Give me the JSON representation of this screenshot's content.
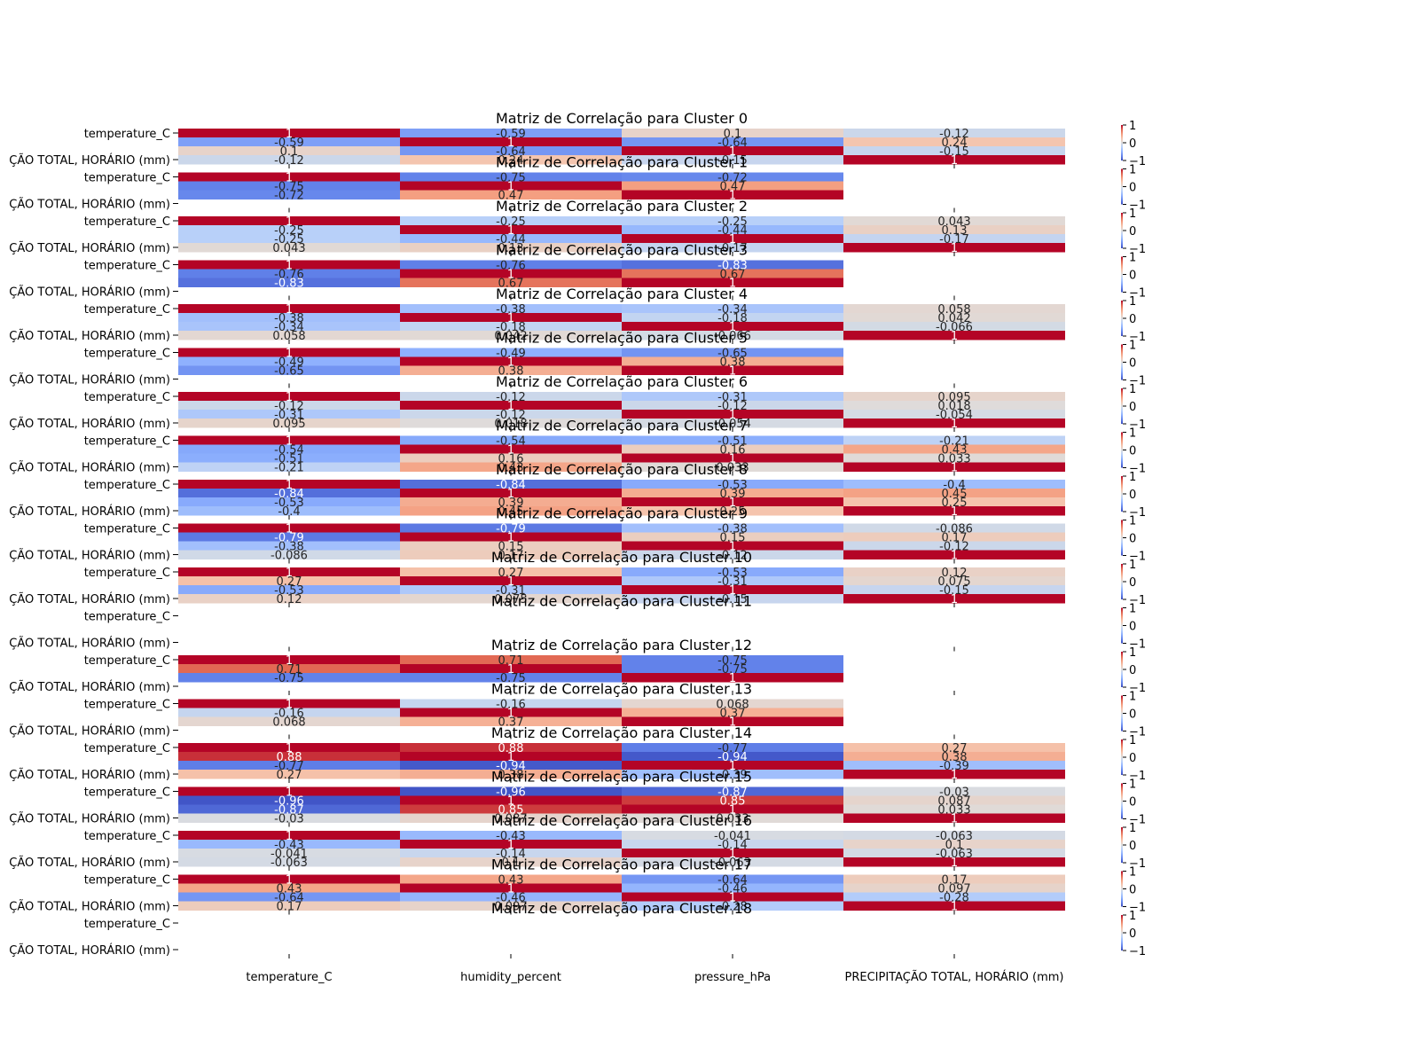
{
  "chart_data": {
    "type": "heatmap",
    "variables": [
      "temperature_C",
      "humidity_percent",
      "pressure_hPa",
      "PRECIPITAÇÃO TOTAL, HORÁRIO (mm)"
    ],
    "y_tick_labels_visible": [
      "temperature_C",
      "ÇÃO TOTAL, HORÁRIO (mm)"
    ],
    "colorbar": {
      "colormap": "coolwarm",
      "ticks": [
        "1",
        "0",
        "−1"
      ]
    },
    "clusters": [
      {
        "title": "Matriz de Correlação para Cluster 0",
        "matrix": [
          [
            1,
            -0.59,
            0.1,
            -0.12
          ],
          [
            -0.59,
            1,
            -0.64,
            0.24
          ],
          [
            0.1,
            -0.64,
            1,
            -0.15
          ],
          [
            -0.12,
            0.24,
            -0.15,
            1
          ]
        ]
      },
      {
        "title": "Matriz de Correlação para Cluster 1",
        "matrix": [
          [
            1,
            -0.75,
            -0.72,
            null
          ],
          [
            -0.75,
            1,
            0.47,
            null
          ],
          [
            -0.72,
            0.47,
            1,
            null
          ],
          [
            null,
            null,
            null,
            null
          ]
        ]
      },
      {
        "title": "Matriz de Correlação para Cluster 2",
        "matrix": [
          [
            1,
            -0.25,
            -0.25,
            0.043
          ],
          [
            -0.25,
            1,
            -0.44,
            0.13
          ],
          [
            -0.25,
            -0.44,
            1,
            -0.17
          ],
          [
            0.043,
            0.13,
            -0.17,
            1
          ]
        ]
      },
      {
        "title": "Matriz de Correlação para Cluster 3",
        "matrix": [
          [
            1,
            -0.76,
            -0.83,
            null
          ],
          [
            -0.76,
            1,
            0.67,
            null
          ],
          [
            -0.83,
            0.67,
            1,
            null
          ],
          [
            null,
            null,
            null,
            null
          ]
        ]
      },
      {
        "title": "Matriz de Correlação para Cluster 4",
        "matrix": [
          [
            1,
            -0.38,
            -0.34,
            0.058
          ],
          [
            -0.38,
            1,
            -0.18,
            0.042
          ],
          [
            -0.34,
            -0.18,
            1,
            -0.066
          ],
          [
            0.058,
            0.042,
            -0.066,
            1
          ]
        ]
      },
      {
        "title": "Matriz de Correlação para Cluster 5",
        "matrix": [
          [
            1,
            -0.49,
            -0.65,
            null
          ],
          [
            -0.49,
            1,
            0.38,
            null
          ],
          [
            -0.65,
            0.38,
            1,
            null
          ],
          [
            null,
            null,
            null,
            null
          ]
        ]
      },
      {
        "title": "Matriz de Correlação para Cluster 6",
        "matrix": [
          [
            1,
            -0.12,
            -0.31,
            0.095
          ],
          [
            -0.12,
            1,
            -0.12,
            0.018
          ],
          [
            -0.31,
            -0.12,
            1,
            -0.054
          ],
          [
            0.095,
            0.018,
            -0.054,
            1
          ]
        ]
      },
      {
        "title": "Matriz de Correlação para Cluster 7",
        "matrix": [
          [
            1,
            -0.54,
            -0.51,
            -0.21
          ],
          [
            -0.54,
            1,
            0.16,
            0.43
          ],
          [
            -0.51,
            0.16,
            1,
            0.033
          ],
          [
            -0.21,
            0.43,
            0.033,
            1
          ]
        ]
      },
      {
        "title": "Matriz de Correlação para Cluster 8",
        "matrix": [
          [
            1,
            -0.84,
            -0.53,
            -0.4
          ],
          [
            -0.84,
            1,
            0.39,
            0.45
          ],
          [
            -0.53,
            0.39,
            1,
            0.25
          ],
          [
            -0.4,
            0.45,
            0.25,
            1
          ]
        ]
      },
      {
        "title": "Matriz de Correlação para Cluster 9",
        "matrix": [
          [
            1,
            -0.79,
            -0.38,
            -0.086
          ],
          [
            -0.79,
            1,
            0.15,
            0.17
          ],
          [
            -0.38,
            0.15,
            1,
            -0.12
          ],
          [
            -0.086,
            0.17,
            -0.12,
            1
          ]
        ]
      },
      {
        "title": "Matriz de Correlação para Cluster 10",
        "matrix": [
          [
            1,
            0.27,
            -0.53,
            0.12
          ],
          [
            0.27,
            1,
            -0.31,
            0.075
          ],
          [
            -0.53,
            -0.31,
            1,
            -0.15
          ],
          [
            0.12,
            0.075,
            -0.15,
            1
          ]
        ]
      },
      {
        "title": "Matriz de Correlação para Cluster 11",
        "matrix": [
          [
            null,
            null,
            null,
            null
          ],
          [
            null,
            null,
            null,
            null
          ],
          [
            null,
            null,
            null,
            null
          ],
          [
            null,
            null,
            null,
            null
          ]
        ]
      },
      {
        "title": "Matriz de Correlação para Cluster 12",
        "matrix": [
          [
            1,
            0.71,
            -0.75,
            null
          ],
          [
            0.71,
            1,
            -0.75,
            null
          ],
          [
            -0.75,
            -0.75,
            1,
            null
          ],
          [
            null,
            null,
            null,
            null
          ]
        ]
      },
      {
        "title": "Matriz de Correlação para Cluster 13",
        "matrix": [
          [
            1,
            -0.16,
            0.068,
            null
          ],
          [
            -0.16,
            1,
            0.37,
            null
          ],
          [
            0.068,
            0.37,
            1,
            null
          ],
          [
            null,
            null,
            null,
            null
          ]
        ]
      },
      {
        "title": "Matriz de Correlação para Cluster 14",
        "matrix": [
          [
            1,
            0.88,
            -0.77,
            0.27
          ],
          [
            0.88,
            1,
            -0.94,
            0.38
          ],
          [
            -0.77,
            -0.94,
            1,
            -0.39
          ],
          [
            0.27,
            0.38,
            -0.39,
            1
          ]
        ]
      },
      {
        "title": "Matriz de Correlação para Cluster 15",
        "matrix": [
          [
            1,
            -0.96,
            -0.87,
            -0.03
          ],
          [
            -0.96,
            1,
            0.85,
            0.087
          ],
          [
            -0.87,
            0.85,
            1,
            0.033
          ],
          [
            -0.03,
            0.087,
            0.033,
            1
          ]
        ]
      },
      {
        "title": "Matriz de Correlação para Cluster 16",
        "matrix": [
          [
            1,
            -0.43,
            -0.041,
            -0.063
          ],
          [
            -0.43,
            1,
            -0.14,
            0.1
          ],
          [
            -0.041,
            -0.14,
            1,
            -0.063
          ],
          [
            -0.063,
            0.1,
            -0.063,
            1
          ]
        ]
      },
      {
        "title": "Matriz de Correlação para Cluster 17",
        "matrix": [
          [
            1,
            0.43,
            -0.64,
            0.17
          ],
          [
            0.43,
            1,
            -0.46,
            0.097
          ],
          [
            -0.64,
            -0.46,
            1,
            -0.28
          ],
          [
            0.17,
            0.097,
            -0.28,
            1
          ]
        ]
      },
      {
        "title": "Matriz de Correlação para Cluster 18",
        "matrix": [
          [
            null,
            null,
            null,
            null
          ],
          [
            null,
            null,
            null,
            null
          ],
          [
            null,
            null,
            null,
            null
          ],
          [
            null,
            null,
            null,
            null
          ]
        ]
      }
    ]
  }
}
